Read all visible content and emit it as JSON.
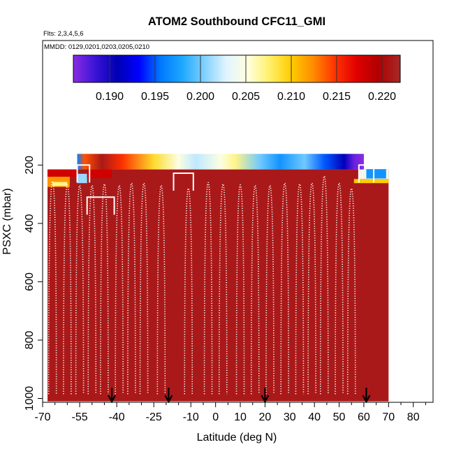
{
  "chart_data": {
    "type": "heatmap",
    "title": "ATOM2 Southbound CFC11_GMI",
    "subtitle_flights": "Flts: 2,3,4,5,6",
    "subtitle_dates": "MMDD: 0129,0201,0203,0205,0210",
    "xlabel": "Latitude (deg N)",
    "ylabel": "PSXC (mbar)",
    "xlim": [
      -70,
      88
    ],
    "ylim": [
      1010,
      60
    ],
    "x_ticks": [
      -70,
      -55,
      -40,
      -25,
      -10,
      0,
      10,
      20,
      30,
      40,
      50,
      60,
      70,
      80
    ],
    "x_minor_ticks": [
      -65,
      -60,
      -50,
      -45,
      -35,
      -30,
      -20,
      -15,
      -5,
      5,
      15,
      25,
      35,
      45,
      55,
      65,
      75,
      85
    ],
    "y_ticks": [
      200,
      400,
      600,
      800,
      1000
    ],
    "colorbar": {
      "min": 0.186,
      "max": 0.222,
      "tick_values": [
        0.19,
        0.195,
        0.2,
        0.205,
        0.21,
        0.215,
        0.22
      ],
      "tick_labels": [
        "0.190",
        "0.195",
        "0.200",
        "0.205",
        "0.210",
        "0.215",
        "0.220"
      ],
      "colors": [
        "#8a2be2",
        "#3b14d6",
        "#0000b3",
        "#0000ff",
        "#0078ff",
        "#1ea8ff",
        "#7fd0ff",
        "#e0f4ff",
        "#ffffe0",
        "#fff06a",
        "#ffcc00",
        "#ff8c00",
        "#ff3300",
        "#e00000",
        "#b00000",
        "#a52a2a"
      ]
    },
    "curtain_band": {
      "p_top": 200,
      "p_bottom": 215,
      "lat_range": [
        -56,
        60
      ],
      "stops": [
        {
          "lat": -56,
          "value": 0.196
        },
        {
          "lat": -53,
          "value": 0.214
        },
        {
          "lat": -46,
          "value": 0.221
        },
        {
          "lat": -38,
          "value": 0.215
        },
        {
          "lat": -25,
          "value": 0.209
        },
        {
          "lat": -15,
          "value": 0.205
        },
        {
          "lat": -8,
          "value": 0.202
        },
        {
          "lat": 2,
          "value": 0.205
        },
        {
          "lat": 8,
          "value": 0.207
        },
        {
          "lat": 18,
          "value": 0.2
        },
        {
          "lat": 26,
          "value": 0.197
        },
        {
          "lat": 36,
          "value": 0.2
        },
        {
          "lat": 44,
          "value": 0.195
        },
        {
          "lat": 52,
          "value": 0.191
        },
        {
          "lat": 56,
          "value": 0.187
        },
        {
          "lat": 60,
          "value": 0.186
        }
      ]
    },
    "background_value": 0.221,
    "field_extent": {
      "lat": [
        -68,
        70
      ],
      "p": [
        215,
        1010
      ]
    },
    "upper_patches": [
      {
        "lat": [
          -68,
          -56
        ],
        "p": [
          215,
          240
        ],
        "value": 0.218
      },
      {
        "lat": [
          -68,
          -59
        ],
        "p": [
          240,
          275
        ],
        "value": 0.212
      },
      {
        "lat": [
          -66,
          -60
        ],
        "p": [
          258,
          272
        ],
        "value": 0.207
      },
      {
        "lat": [
          -56,
          -52
        ],
        "p": [
          230,
          262
        ],
        "value": 0.201
      },
      {
        "lat": [
          -52,
          -42
        ],
        "p": [
          215,
          245
        ],
        "value": 0.218
      },
      {
        "lat": [
          58,
          70
        ],
        "p": [
          215,
          248
        ],
        "value": 0.204
      },
      {
        "lat": [
          56,
          70
        ],
        "p": [
          248,
          262
        ],
        "value": 0.21
      },
      {
        "lat": [
          61,
          69
        ],
        "p": [
          214,
          246
        ],
        "value": 0.197
      }
    ],
    "profile_tops_mbar": [
      {
        "lat": -66,
        "p_top": 255
      },
      {
        "lat": -60,
        "p_top": 268
      },
      {
        "lat": -55,
        "p_top": 270
      },
      {
        "lat": -50,
        "p_top": 270
      },
      {
        "lat": -45,
        "p_top": 265
      },
      {
        "lat": -39,
        "p_top": 270
      },
      {
        "lat": -34,
        "p_top": 262
      },
      {
        "lat": -29,
        "p_top": 262
      },
      {
        "lat": -22,
        "p_top": 270
      },
      {
        "lat": -11,
        "p_top": 280
      },
      {
        "lat": -3,
        "p_top": 260
      },
      {
        "lat": 3,
        "p_top": 265
      },
      {
        "lat": 10,
        "p_top": 268
      },
      {
        "lat": 16,
        "p_top": 270
      },
      {
        "lat": 22,
        "p_top": 270
      },
      {
        "lat": 28,
        "p_top": 262
      },
      {
        "lat": 34,
        "p_top": 265
      },
      {
        "lat": 39,
        "p_top": 262
      },
      {
        "lat": 44,
        "p_top": 238
      },
      {
        "lat": 50,
        "p_top": 262
      },
      {
        "lat": 55,
        "p_top": 280
      }
    ],
    "takeoff_markers_lat": [
      -42,
      -19,
      20,
      61
    ]
  }
}
